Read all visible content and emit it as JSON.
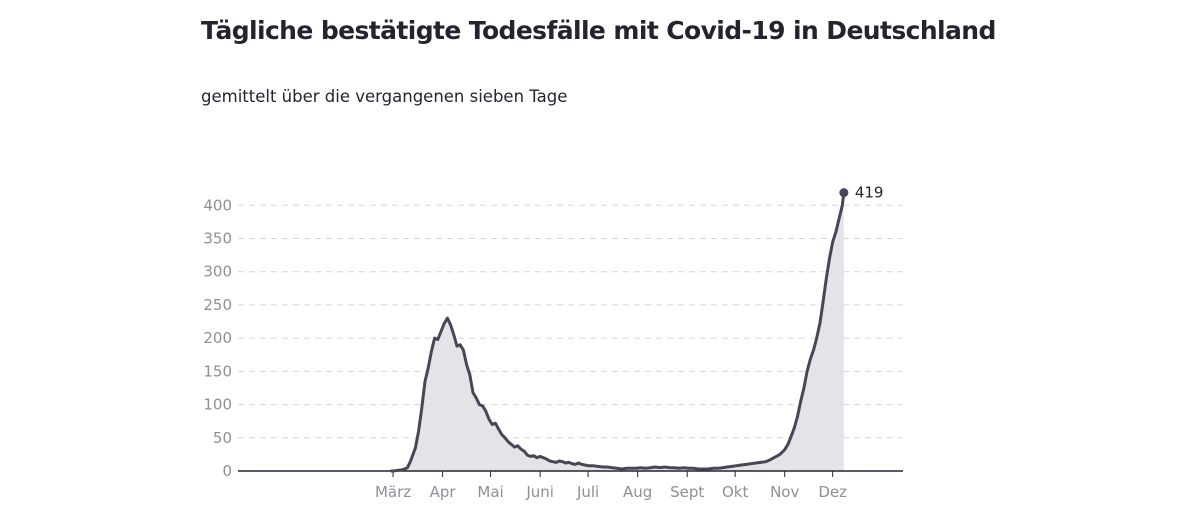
{
  "chart_data": {
    "type": "area",
    "title": "Tägliche bestätigte Todesfälle mit Covid-19 in Deutschland",
    "subtitle": "gemittelt über die vergangenen sieben Tage",
    "ylim": [
      0,
      420
    ],
    "yticks": [
      0,
      50,
      100,
      150,
      200,
      250,
      300,
      350,
      400
    ],
    "ytick_labels": [
      "0",
      "50",
      "100",
      "150",
      "200",
      "250",
      "300",
      "350",
      "400"
    ],
    "xlim": [
      -37,
      379
    ],
    "xticks": [
      60,
      91,
      121,
      152,
      182,
      213,
      244,
      274,
      305,
      335
    ],
    "xtick_labels": [
      "März",
      "Apr",
      "Mai",
      "Juni",
      "Juli",
      "Aug",
      "Sept",
      "Okt",
      "Nov",
      "Dez"
    ],
    "grid": true,
    "series": [
      {
        "x": [
          59,
          60,
          63,
          66,
          69,
          71,
          74,
          76,
          78,
          80,
          82,
          84,
          86,
          88,
          90,
          92,
          94,
          96,
          98,
          100,
          102,
          104,
          106,
          108,
          110,
          112,
          114,
          116,
          118,
          120,
          122,
          124,
          126,
          128,
          130,
          132,
          134,
          136,
          138,
          140,
          142,
          144,
          146,
          148,
          150,
          152,
          154,
          156,
          158,
          160,
          162,
          164,
          166,
          168,
          170,
          172,
          174,
          176,
          178,
          180,
          182,
          185,
          188,
          191,
          194,
          197,
          200,
          203,
          206,
          209,
          212,
          215,
          218,
          221,
          224,
          227,
          230,
          233,
          236,
          239,
          242,
          245,
          248,
          251,
          254,
          257,
          260,
          263,
          266,
          269,
          272,
          275,
          278,
          281,
          284,
          287,
          290,
          293,
          296,
          299,
          302,
          305,
          307,
          309,
          311,
          313,
          315,
          317,
          319,
          321,
          323,
          325,
          327,
          329,
          331,
          333,
          335,
          337,
          339,
          341,
          342
        ],
        "y": [
          0,
          0,
          1,
          2,
          5,
          15,
          35,
          60,
          95,
          135,
          155,
          180,
          200,
          198,
          210,
          222,
          230,
          220,
          205,
          188,
          190,
          182,
          160,
          145,
          118,
          110,
          100,
          98,
          90,
          78,
          70,
          72,
          63,
          55,
          50,
          44,
          40,
          36,
          38,
          33,
          30,
          24,
          22,
          23,
          20,
          22,
          20,
          18,
          15,
          14,
          13,
          15,
          14,
          12,
          13,
          11,
          10,
          12,
          10,
          9,
          8,
          8,
          7,
          6,
          6,
          5,
          4,
          3,
          4,
          4,
          4,
          5,
          4,
          5,
          6,
          5,
          6,
          5,
          5,
          4,
          5,
          4,
          4,
          3,
          3,
          3,
          4,
          4,
          5,
          6,
          7,
          8,
          9,
          10,
          11,
          12,
          13,
          14,
          17,
          21,
          25,
          32,
          40,
          52,
          65,
          82,
          105,
          125,
          150,
          168,
          182,
          200,
          222,
          255,
          290,
          320,
          345,
          360,
          380,
          400,
          419
        ]
      }
    ],
    "annotations": [
      {
        "x": 342,
        "y": 419,
        "text": "419"
      }
    ],
    "colors": {
      "line": "#474656",
      "fill": "#e4e4e8",
      "grid": "#d6d6d9",
      "axis": "#25242e",
      "tick_text": "#8f8f95",
      "title": "#25242e"
    }
  }
}
